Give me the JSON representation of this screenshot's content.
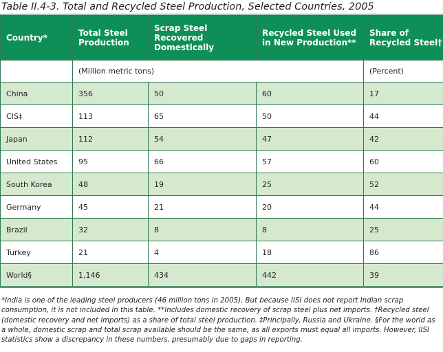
{
  "title": "Table II.4-3. Total and Recycled Steel Production, Selected Countries, 2005",
  "columns": [
    "Country*",
    "Total Steel Production",
    "Scrap Steel Recovered Domestically",
    "Recycled Steel Used in New Production**",
    "Share of Recycled Steel†"
  ],
  "units": {
    "left": "(Million metric tons)",
    "right": "(Percent)"
  },
  "rows": [
    [
      "China",
      "356",
      "50",
      "60",
      "17"
    ],
    [
      "CIS‡",
      "113",
      "65",
      "50",
      "44"
    ],
    [
      "Japan",
      "112",
      "54",
      "47",
      "42"
    ],
    [
      "United States",
      "95",
      "66",
      "57",
      "60"
    ],
    [
      "South Korea",
      "48",
      "19",
      "25",
      "52"
    ],
    [
      "Germany",
      "45",
      "21",
      "20",
      "44"
    ],
    [
      "Brazil",
      "32",
      "8",
      "8",
      "25"
    ],
    [
      "Turkey",
      "21",
      "4",
      "18",
      "86"
    ],
    [
      "World§",
      "1,146",
      "434",
      "442",
      "39"
    ]
  ],
  "footnote": "*India is one of the leading steel producers (46 million tons in 2005). But because IISI does not report Indian scrap consumption, it is not included in this table. **Includes domestic recovery of scrap steel plus net imports. †Recycled steel (domestic recovery and net imports) as a share of total steel production. ‡Principally, Russia and Ukraine. §For the world as a whole, domestic scrap and total scrap available should be the same, as all exports must equal all imports. However, IISI statistics show a discrepancy in these numbers, presumably due to gaps in reporting.",
  "colors": {
    "header_bg": "#0f8f58",
    "shaded_row": "#d5e9cf",
    "rule": "#1f6b46"
  }
}
